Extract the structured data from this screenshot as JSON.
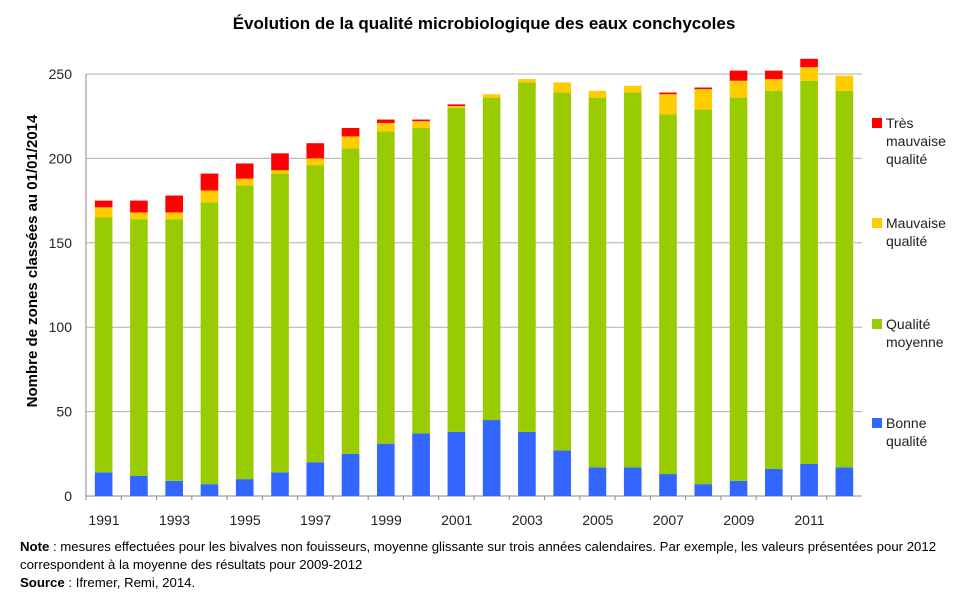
{
  "chart_data": {
    "type": "bar",
    "stacked": true,
    "title": "Évolution de la qualité microbiologique des eaux conchycoles",
    "xlabel": "",
    "ylabel": "Nombre de zones classées au 01/01/2014",
    "ylim": [
      0,
      250
    ],
    "yticks": [
      "0",
      "50",
      "100",
      "150",
      "200",
      "250"
    ],
    "ytick_values": [
      0,
      50,
      100,
      150,
      200,
      250
    ],
    "grid": true,
    "legend_position": "right",
    "categories": [
      "1991",
      "1992",
      "1993",
      "1994",
      "1995",
      "1996",
      "1997",
      "1998",
      "1999",
      "2000",
      "2001",
      "2002",
      "2003",
      "2004",
      "2005",
      "2006",
      "2007",
      "2008",
      "2009",
      "2010",
      "2011",
      "2012"
    ],
    "xtick_labels": [
      "1991",
      "",
      "1993",
      "",
      "1995",
      "",
      "1997",
      "",
      "1999",
      "",
      "2001",
      "",
      "2003",
      "",
      "2005",
      "",
      "2007",
      "",
      "2009",
      "",
      "2011",
      ""
    ],
    "series": [
      {
        "name": "Bonne qualité",
        "color": "#3366ff",
        "values": [
          14,
          12,
          9,
          7,
          10,
          14,
          20,
          25,
          31,
          37,
          38,
          45,
          38,
          27,
          17,
          17,
          13,
          7,
          9,
          16,
          19,
          17
        ]
      },
      {
        "name": "Qualité moyenne",
        "color": "#99cc00",
        "values": [
          151,
          152,
          155,
          167,
          174,
          177,
          176,
          181,
          185,
          181,
          192,
          191,
          207,
          212,
          219,
          222,
          213,
          222,
          227,
          224,
          227,
          223
        ]
      },
      {
        "name": "Mauvaise qualité",
        "color": "#ffcc00",
        "values": [
          6,
          4,
          4,
          7,
          4,
          2,
          4,
          7,
          5,
          4,
          1,
          2,
          2,
          6,
          4,
          4,
          12,
          12,
          10,
          7,
          8,
          9
        ]
      },
      {
        "name": "Très mauvaise qualité",
        "color": "#ff0000",
        "values": [
          4,
          7,
          10,
          10,
          9,
          10,
          9,
          5,
          2,
          1,
          1,
          0,
          0,
          0,
          0,
          0,
          1,
          1,
          6,
          5,
          5,
          0
        ]
      }
    ]
  },
  "legend": [
    {
      "lines": [
        "Très",
        "mauvaise",
        "qualité"
      ],
      "color": "#ff0000"
    },
    {
      "lines": [
        "Mauvaise",
        "qualité"
      ],
      "color": "#ffcc00"
    },
    {
      "lines": [
        "Qualité",
        "moyenne"
      ],
      "color": "#99cc00"
    },
    {
      "lines": [
        "Bonne",
        "qualité"
      ],
      "color": "#3366ff"
    }
  ],
  "footnote": {
    "note_label": "Note",
    "note_text": " : mesures effectuées pour les bivalves non fouisseurs, moyenne glissante sur trois années calendaires. Par exemple, les valeurs présentées pour 2012 correspondent à la moyenne des résultats pour 2009-2012",
    "source_label": "Source",
    "source_text": " : Ifremer, Remi, 2014."
  }
}
